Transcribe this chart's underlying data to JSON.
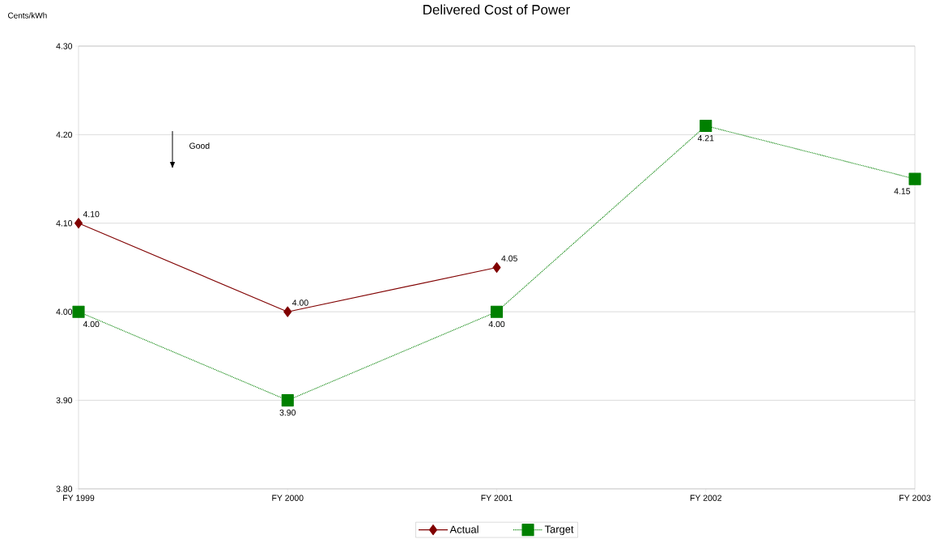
{
  "chart_data": {
    "type": "line",
    "title": "Delivered Cost of Power",
    "ylabel": "Cents/kWh",
    "categories": [
      "FY 1999",
      "FY 2000",
      "FY 2001",
      "FY 2002",
      "FY 2003"
    ],
    "series": [
      {
        "name": "Actual",
        "color": "#800000",
        "marker": "diamond",
        "line_style": "solid",
        "values": [
          4.1,
          4.0,
          4.05,
          null,
          null
        ],
        "value_labels": [
          "4.10",
          "4.00",
          "4.05",
          null,
          null
        ]
      },
      {
        "name": "Target",
        "color": "#008000",
        "marker": "square",
        "line_style": "dotted",
        "values": [
          4.0,
          3.9,
          4.0,
          4.21,
          4.15
        ],
        "value_labels": [
          "4.00",
          "3.90",
          "4.00",
          "4.21",
          "4.15"
        ]
      }
    ],
    "ylim": [
      3.8,
      4.3
    ],
    "yticks": [
      {
        "value": 3.8,
        "label": "3.80"
      },
      {
        "value": 3.9,
        "label": "3.90"
      },
      {
        "value": 4.0,
        "label": "4.00"
      },
      {
        "value": 4.1,
        "label": "4.10"
      },
      {
        "value": 4.2,
        "label": "4.20"
      },
      {
        "value": 4.3,
        "label": "4.30"
      }
    ],
    "grid": "y",
    "legend": "bottom",
    "annotations": [
      "Good"
    ]
  }
}
